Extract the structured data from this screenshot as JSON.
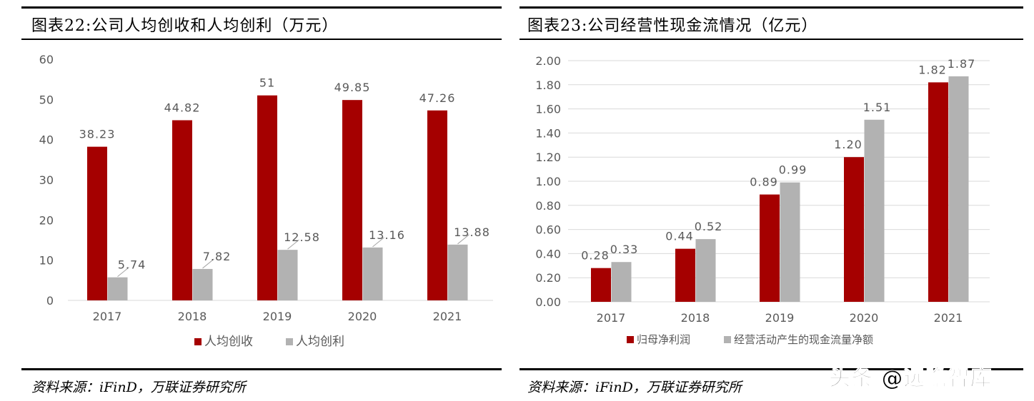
{
  "left": {
    "title": "图表22:公司人均创收和人均创利（万元）",
    "source": "资料来源：iFinD，万联证券研究所"
  },
  "right": {
    "title": "图表23:公司经营性现金流情况（亿元）",
    "source": "资料来源：iFinD，万联证券研究所"
  },
  "watermark": "头条 @远瞻智库",
  "chart_data": [
    {
      "type": "bar",
      "categories": [
        "2017",
        "2018",
        "2019",
        "2020",
        "2021"
      ],
      "series": [
        {
          "name": "人均创收",
          "values": [
            38.23,
            44.82,
            51,
            49.85,
            47.26
          ],
          "color": "#a50000",
          "labels": [
            "38.23",
            "44.82",
            "51",
            "49.85",
            "47.26"
          ]
        },
        {
          "name": "人均创利",
          "values": [
            5.74,
            7.82,
            12.58,
            13.16,
            13.88
          ],
          "color": "#b2b2b2",
          "labels": [
            "5.74",
            "7.82",
            "12.58",
            "13.16",
            "13.88"
          ]
        }
      ],
      "ylim": [
        0,
        60
      ],
      "yticks": [
        "0",
        "10",
        "20",
        "30",
        "40",
        "50",
        "60"
      ],
      "grid": false,
      "legend": "bottom"
    },
    {
      "type": "bar",
      "categories": [
        "2017",
        "2018",
        "2019",
        "2020",
        "2021"
      ],
      "series": [
        {
          "name": "归母净利润",
          "values": [
            0.28,
            0.44,
            0.89,
            1.2,
            1.82
          ],
          "color": "#a50000",
          "labels": [
            "0.28",
            "0.44",
            "0.89",
            "1.20",
            "1.82"
          ]
        },
        {
          "name": "经营活动产生的现金流量净额",
          "values": [
            0.33,
            0.52,
            0.99,
            1.51,
            1.87
          ],
          "color": "#b2b2b2",
          "labels": [
            "0.33",
            "0.52",
            "0.99",
            "1.51",
            "1.87"
          ]
        }
      ],
      "ylim": [
        0,
        2
      ],
      "yticks": [
        "0.00",
        "0.20",
        "0.40",
        "0.60",
        "0.80",
        "1.00",
        "1.20",
        "1.40",
        "1.60",
        "1.80",
        "2.00"
      ],
      "grid": true,
      "legend": "bottom"
    }
  ]
}
